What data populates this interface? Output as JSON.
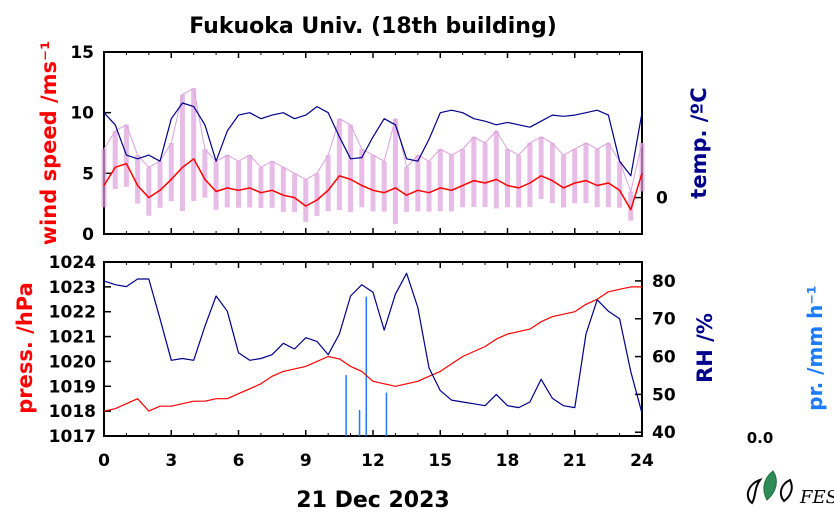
{
  "title": "Fukuoka Univ. (18th building)",
  "date_label": "21 Dec 2023",
  "colors": {
    "wind_raw": "#dda0dd",
    "wind_avg": "#ff0000",
    "temperature": "#00008b",
    "pressure": "#ff0000",
    "humidity": "#00008b",
    "precipitation": "#1e7bff",
    "axis": "#000000"
  },
  "logo": {
    "icon": "university-logo-leaf-icon",
    "text": "FES"
  },
  "chart_data": [
    {
      "type": "line",
      "name": "top-panel",
      "x": [
        0,
        0.5,
        1,
        1.5,
        2,
        2.5,
        3,
        3.5,
        4,
        4.5,
        5,
        5.5,
        6,
        6.5,
        7,
        7.5,
        8,
        8.5,
        9,
        9.5,
        10,
        10.5,
        11,
        11.5,
        12,
        12.5,
        13,
        13.5,
        14,
        14.5,
        15,
        15.5,
        16,
        16.5,
        17,
        17.5,
        18,
        18.5,
        19,
        19.5,
        20,
        20.5,
        21,
        21.5,
        22,
        22.5,
        23,
        23.5,
        24
      ],
      "xlim": [
        0,
        24
      ],
      "xticks": [
        "0",
        "3",
        "6",
        "9",
        "12",
        "15",
        "18",
        "21",
        "24"
      ],
      "xtick_values": [
        0,
        3,
        6,
        9,
        12,
        15,
        18,
        21,
        24
      ],
      "left_axis": {
        "label": "wind speed /ms⁻¹",
        "ylim": [
          0,
          15
        ],
        "ticks": [
          "0",
          "5",
          "10",
          "15"
        ],
        "tick_values": [
          0,
          5,
          10,
          15
        ]
      },
      "right_axis": {
        "label": "temp. /ºC",
        "ticks": [
          "0"
        ],
        "tick_value_left_scale": 3
      },
      "series": [
        {
          "role": "wind_avg",
          "axis": "left",
          "values": [
            4.0,
            5.5,
            5.8,
            4.0,
            3.0,
            3.6,
            4.5,
            5.5,
            6.2,
            4.5,
            3.5,
            3.8,
            3.6,
            3.8,
            3.4,
            3.6,
            3.2,
            3.0,
            2.3,
            2.8,
            3.6,
            4.8,
            4.5,
            4.0,
            3.6,
            3.4,
            3.8,
            3.2,
            3.6,
            3.4,
            3.8,
            3.6,
            4.0,
            4.4,
            4.2,
            4.5,
            4.0,
            3.8,
            4.2,
            4.8,
            4.4,
            3.8,
            4.2,
            4.4,
            4.0,
            4.2,
            3.6,
            2.0,
            5.0
          ]
        },
        {
          "role": "wind_raw",
          "axis": "left",
          "values": [
            7.0,
            8.5,
            9.0,
            6.5,
            5.5,
            6.0,
            7.5,
            11.5,
            12.0,
            7.0,
            6.0,
            6.5,
            6.0,
            6.5,
            5.5,
            6.0,
            5.5,
            5.0,
            4.5,
            5.0,
            6.5,
            9.5,
            9.0,
            7.0,
            6.5,
            6.0,
            9.5,
            5.5,
            6.5,
            6.0,
            7.0,
            6.5,
            7.0,
            8.0,
            7.5,
            8.5,
            7.0,
            6.5,
            7.5,
            8.0,
            7.5,
            6.5,
            7.0,
            7.5,
            7.0,
            7.5,
            6.0,
            3.5,
            7.5
          ]
        },
        {
          "role": "temperature",
          "axis": "left-scale",
          "values": [
            10.0,
            9.0,
            6.5,
            6.2,
            6.5,
            6.0,
            9.5,
            10.8,
            10.5,
            9.0,
            6.0,
            8.5,
            9.8,
            10.0,
            9.5,
            9.8,
            10.0,
            9.5,
            9.8,
            10.5,
            10.0,
            8.0,
            6.2,
            6.3,
            8.0,
            9.5,
            9.0,
            6.2,
            6.0,
            7.8,
            10.0,
            10.2,
            10.0,
            9.5,
            9.3,
            9.0,
            9.2,
            9.0,
            8.8,
            9.3,
            9.8,
            9.7,
            9.8,
            10.0,
            10.2,
            9.8,
            6.0,
            4.8,
            10.0
          ]
        }
      ]
    },
    {
      "type": "line",
      "name": "bottom-panel",
      "x": [
        0,
        0.5,
        1,
        1.5,
        2,
        2.5,
        3,
        3.5,
        4,
        4.5,
        5,
        5.5,
        6,
        6.5,
        7,
        7.5,
        8,
        8.5,
        9,
        9.5,
        10,
        10.5,
        11,
        11.5,
        12,
        12.5,
        13,
        13.5,
        14,
        14.5,
        15,
        15.5,
        16,
        16.5,
        17,
        17.5,
        18,
        18.5,
        19,
        19.5,
        20,
        20.5,
        21,
        21.5,
        22,
        22.5,
        23,
        23.5,
        24
      ],
      "xlim": [
        0,
        24
      ],
      "xticks": [
        "0",
        "3",
        "6",
        "9",
        "12",
        "15",
        "18",
        "21",
        "24"
      ],
      "xtick_values": [
        0,
        3,
        6,
        9,
        12,
        15,
        18,
        21,
        24
      ],
      "left_axis": {
        "label": "press. /hPa",
        "ylim": [
          1017,
          1024
        ],
        "ticks": [
          "1017",
          "1018",
          "1019",
          "1020",
          "1021",
          "1022",
          "1023",
          "1024"
        ],
        "tick_values": [
          1017,
          1018,
          1019,
          1020,
          1021,
          1022,
          1023,
          1024
        ]
      },
      "right_axis": {
        "label": "RH /%",
        "ylim": [
          39.0,
          85.0
        ],
        "ticks": [
          "40",
          "50",
          "60",
          "70",
          "80"
        ],
        "tick_values": [
          40,
          50,
          60,
          70,
          80
        ]
      },
      "precip_axis": {
        "label": "pr. /mm h⁻¹",
        "ticks": [
          "0.0"
        ]
      },
      "series": [
        {
          "role": "pressure",
          "axis": "left",
          "values": [
            1018.0,
            1018.1,
            1018.3,
            1018.5,
            1018.0,
            1018.2,
            1018.2,
            1018.3,
            1018.4,
            1018.4,
            1018.5,
            1018.5,
            1018.7,
            1018.9,
            1019.1,
            1019.4,
            1019.6,
            1019.7,
            1019.8,
            1020.0,
            1020.2,
            1020.1,
            1019.8,
            1019.6,
            1019.2,
            1019.1,
            1019.0,
            1019.1,
            1019.2,
            1019.4,
            1019.6,
            1019.9,
            1020.2,
            1020.4,
            1020.6,
            1020.9,
            1021.1,
            1021.2,
            1021.3,
            1021.6,
            1021.8,
            1021.9,
            1022.0,
            1022.3,
            1022.5,
            1022.8,
            1022.9,
            1023.0,
            1023.0
          ]
        },
        {
          "role": "humidity",
          "axis": "right",
          "values": [
            80.0,
            79.0,
            78.5,
            80.5,
            80.5,
            70.0,
            59.0,
            59.5,
            59.0,
            68.0,
            76.0,
            72.0,
            61.0,
            59.0,
            59.5,
            60.5,
            63.5,
            62.0,
            65.0,
            64.0,
            60.5,
            66.0,
            76.0,
            79.0,
            77.0,
            67.0,
            76.5,
            82.0,
            73.0,
            57.0,
            51.0,
            48.5,
            48.0,
            47.5,
            47.0,
            50.0,
            47.0,
            46.5,
            48.0,
            54.0,
            49.0,
            47.0,
            46.5,
            66.0,
            75.0,
            72.0,
            70.0,
            56.0,
            45.0
          ]
        },
        {
          "role": "precipitation",
          "axis": "precip",
          "x": [
            10.8,
            11.4,
            11.7,
            12.6
          ],
          "values": [
            0.35,
            0.15,
            0.8,
            0.25
          ]
        }
      ]
    }
  ]
}
